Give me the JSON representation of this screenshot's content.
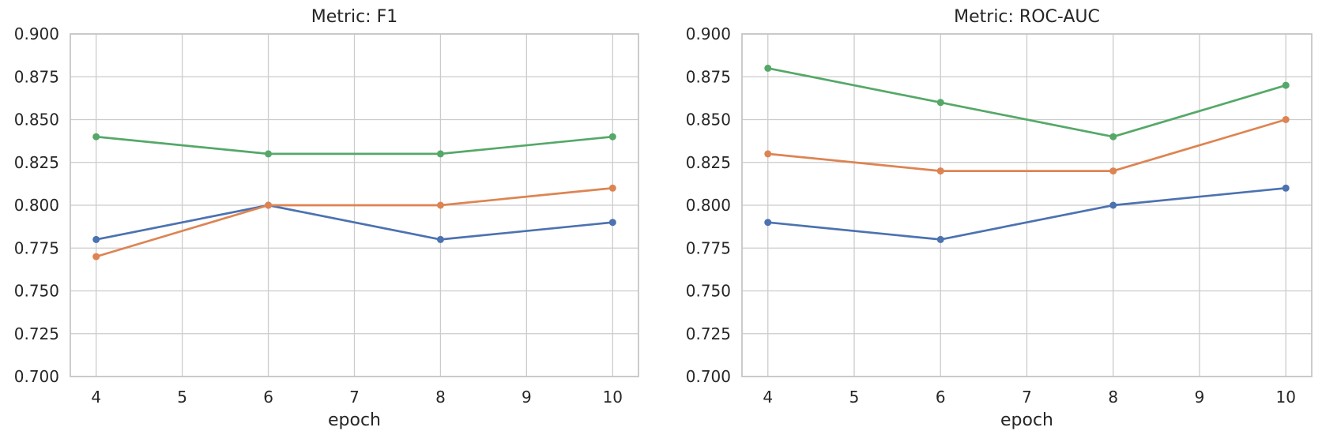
{
  "figure": {
    "background": "#ffffff"
  },
  "style": {
    "grid_color": "#cccccc",
    "spine_color": "#c6c6c6",
    "text_color": "#262626",
    "plot_background": "#ffffff",
    "series_colors": {
      "blue": "#4C72B0",
      "orange": "#DD8452",
      "green": "#55A868"
    }
  },
  "chart_data": [
    {
      "type": "line",
      "title": "Metric: F1",
      "xlabel": "epoch",
      "ylabel": "",
      "x": [
        4,
        6,
        8,
        10
      ],
      "xlim": [
        3.7,
        10.3
      ],
      "ylim": [
        0.7,
        0.9
      ],
      "xtick_labels": [
        "4",
        "5",
        "6",
        "7",
        "8",
        "9",
        "10"
      ],
      "ytick_labels": [
        "0.700",
        "0.725",
        "0.750",
        "0.775",
        "0.800",
        "0.825",
        "0.850",
        "0.875",
        "0.900"
      ],
      "grid": true,
      "legend": "none",
      "marker": "circle",
      "series": [
        {
          "name": "series-blue",
          "color": "#4C72B0",
          "values": [
            0.78,
            0.8,
            0.78,
            0.79
          ]
        },
        {
          "name": "series-orange",
          "color": "#DD8452",
          "values": [
            0.77,
            0.8,
            0.8,
            0.81
          ]
        },
        {
          "name": "series-green",
          "color": "#55A868",
          "values": [
            0.84,
            0.83,
            0.83,
            0.84
          ]
        }
      ]
    },
    {
      "type": "line",
      "title": "Metric: ROC-AUC",
      "xlabel": "epoch",
      "ylabel": "",
      "x": [
        4,
        6,
        8,
        10
      ],
      "xlim": [
        3.7,
        10.3
      ],
      "ylim": [
        0.7,
        0.9
      ],
      "xtick_labels": [
        "4",
        "5",
        "6",
        "7",
        "8",
        "9",
        "10"
      ],
      "ytick_labels": [
        "0.700",
        "0.725",
        "0.750",
        "0.775",
        "0.800",
        "0.825",
        "0.850",
        "0.875",
        "0.900"
      ],
      "grid": true,
      "legend": "none",
      "marker": "circle",
      "series": [
        {
          "name": "series-blue",
          "color": "#4C72B0",
          "values": [
            0.79,
            0.78,
            0.8,
            0.81
          ]
        },
        {
          "name": "series-orange",
          "color": "#DD8452",
          "values": [
            0.83,
            0.82,
            0.82,
            0.85
          ]
        },
        {
          "name": "series-green",
          "color": "#55A868",
          "values": [
            0.88,
            0.86,
            0.84,
            0.87
          ]
        }
      ]
    }
  ]
}
